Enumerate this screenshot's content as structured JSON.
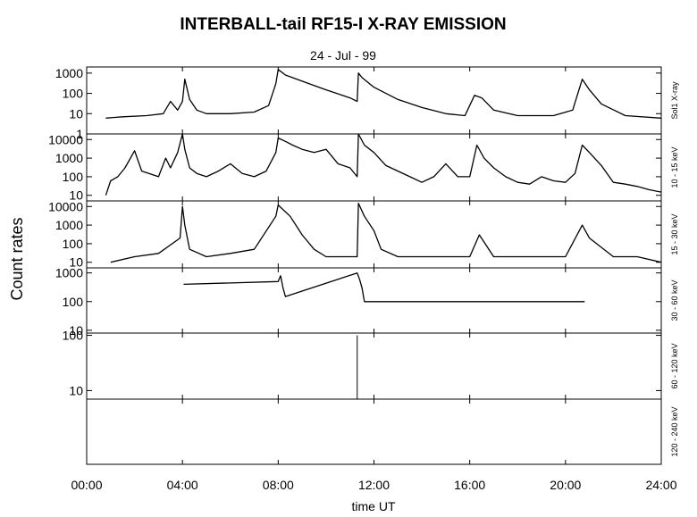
{
  "chart_data": {
    "type": "line",
    "title": "INTERBALL-tail  RF15-I   X-RAY  EMISSION",
    "subtitle": "24 - Jul - 99",
    "xlabel": "time UT",
    "ylabel": "Count  rates",
    "xlim": [
      0,
      24
    ],
    "x_ticks": [
      0,
      4,
      8,
      12,
      16,
      20,
      24
    ],
    "x_tick_labels": [
      "00:00",
      "04:00",
      "08:00",
      "12:00",
      "16:00",
      "20:00",
      "24:00"
    ],
    "grid": false,
    "yscale": "log",
    "panels": [
      {
        "label": "Sol1 X-ray",
        "ylim": [
          1,
          2000
        ],
        "y_ticks": [
          1,
          10,
          100,
          1000
        ],
        "y_tick_labels": [
          "1",
          "10",
          "100",
          "1000"
        ],
        "series": [
          {
            "name": "",
            "x": [
              0.8,
              1.5,
              2.5,
              3.2,
              3.5,
              3.8,
              4.0,
              4.1,
              4.3,
              4.6,
              5.0,
              6.0,
              7.0,
              7.6,
              7.9,
              8.0,
              8.3,
              9.0,
              10.0,
              11.0,
              11.3,
              11.35,
              11.5,
              12.0,
              13.0,
              14.0,
              15.0,
              15.8,
              16.2,
              16.5,
              17.0,
              18.0,
              19.5,
              20.3,
              20.7,
              21.0,
              21.5,
              22.5,
              24.0
            ],
            "values": [
              6,
              7,
              8,
              10,
              40,
              15,
              40,
              500,
              50,
              15,
              10,
              10,
              12,
              25,
              300,
              1500,
              800,
              400,
              150,
              60,
              40,
              1000,
              600,
              200,
              50,
              20,
              10,
              8,
              80,
              60,
              15,
              8,
              8,
              15,
              500,
              150,
              30,
              8,
              6
            ]
          }
        ]
      },
      {
        "label": "10 - 15 keV",
        "ylim": [
          5,
          20000
        ],
        "y_ticks": [
          10,
          100,
          1000,
          10000
        ],
        "y_tick_labels": [
          "10",
          "100",
          "1000",
          "10000"
        ],
        "series": [
          {
            "name": "",
            "x": [
              0.8,
              1.0,
              1.3,
              1.6,
              2.0,
              2.3,
              2.6,
              3.0,
              3.3,
              3.5,
              3.8,
              4.0,
              4.1,
              4.3,
              4.6,
              5.0,
              5.5,
              6.0,
              6.5,
              7.0,
              7.5,
              7.9,
              8.0,
              8.3,
              8.6,
              9.0,
              9.5,
              10.0,
              10.5,
              11.0,
              11.3,
              11.35,
              11.6,
              12.0,
              12.5,
              13.0,
              13.5,
              14.0,
              14.5,
              15.0,
              15.5,
              16.0,
              16.3,
              16.6,
              17.0,
              17.5,
              18.0,
              18.5,
              19.0,
              19.5,
              20.0,
              20.4,
              20.7,
              21.0,
              21.5,
              22.0,
              22.5,
              23.0,
              23.5,
              24.0
            ],
            "values": [
              10,
              60,
              100,
              300,
              2500,
              200,
              150,
              100,
              1000,
              300,
              2000,
              20000,
              3000,
              300,
              150,
              100,
              200,
              500,
              150,
              100,
              200,
              2000,
              12000,
              8000,
              5000,
              3000,
              2000,
              3000,
              500,
              300,
              100,
              20000,
              5000,
              2000,
              400,
              200,
              100,
              50,
              100,
              500,
              100,
              100,
              5000,
              1000,
              300,
              100,
              50,
              40,
              100,
              60,
              50,
              150,
              5000,
              2000,
              400,
              50,
              40,
              30,
              20,
              15
            ]
          }
        ]
      },
      {
        "label": "15 - 30 keV",
        "ylim": [
          5,
          20000
        ],
        "y_ticks": [
          10,
          100,
          1000,
          10000
        ],
        "y_tick_labels": [
          "10",
          "100",
          "1000",
          "10000"
        ],
        "series": [
          {
            "name": "",
            "x": [
              1.0,
              2.0,
              3.0,
              3.9,
              4.0,
              4.1,
              4.3,
              5.0,
              6.0,
              7.0,
              7.9,
              8.0,
              8.5,
              9.0,
              9.5,
              10.0,
              11.0,
              11.3,
              11.35,
              11.6,
              12.0,
              12.3,
              13.0,
              14.0,
              15.0,
              16.0,
              16.4,
              17.0,
              18.0,
              19.0,
              20.0,
              20.7,
              21.0,
              22.0,
              23.0,
              24.0
            ],
            "values": [
              10,
              20,
              30,
              200,
              10000,
              1000,
              50,
              20,
              30,
              50,
              3000,
              12000,
              3000,
              300,
              50,
              20,
              20,
              20,
              15000,
              3000,
              500,
              50,
              20,
              20,
              20,
              20,
              300,
              20,
              20,
              20,
              20,
              1000,
              200,
              20,
              20,
              10
            ]
          }
        ]
      },
      {
        "label": "30 - 60 keV",
        "ylim": [
          8,
          1500
        ],
        "y_ticks": [
          10,
          100,
          1000
        ],
        "y_tick_labels": [
          "10",
          "100",
          "1000"
        ],
        "series": [
          {
            "name": "",
            "x": [
              4.05,
              8.0,
              8.1,
              8.2,
              8.3,
              11.3,
              11.4,
              11.5,
              11.6,
              20.8
            ],
            "values": [
              400,
              500,
              800,
              300,
              150,
              1000,
              600,
              300,
              100,
              100
            ]
          }
        ]
      },
      {
        "label": "60 - 120 keV",
        "ylim": [
          7,
          110
        ],
        "y_ticks": [
          10,
          100
        ],
        "y_tick_labels": [
          "10",
          "100"
        ],
        "series": [
          {
            "name": "",
            "x": [
              11.3
            ],
            "values": [
              100
            ]
          }
        ]
      },
      {
        "label": "120 - 240 keV",
        "ylim": [
          1,
          10
        ],
        "y_ticks": [],
        "y_tick_labels": [],
        "series": [
          {
            "name": "",
            "x": [],
            "values": []
          }
        ]
      }
    ]
  }
}
